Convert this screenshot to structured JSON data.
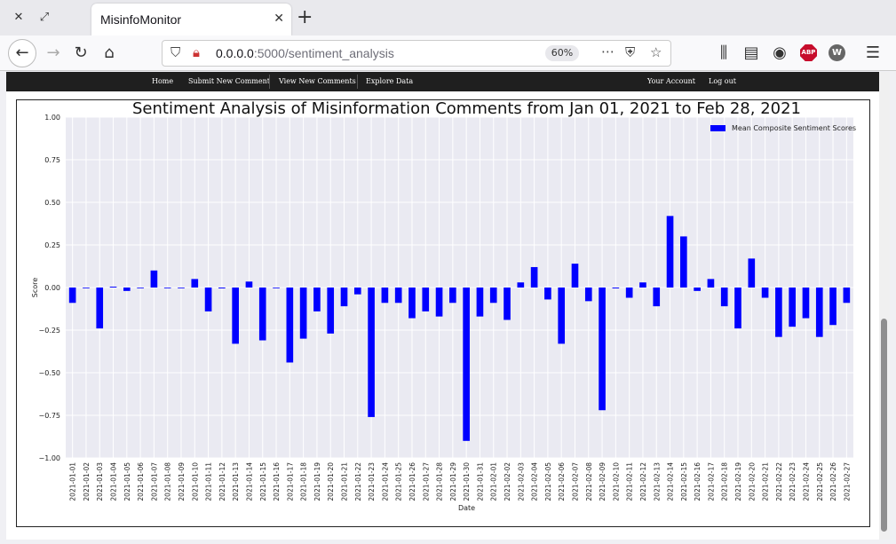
{
  "browser": {
    "tab_title": "MisinfoMonitor",
    "url_host": "0.0.0.0",
    "url_rest": ":5000/sentiment_analysis",
    "zoom": "60%",
    "abp_label": "ABP",
    "w_label": "W"
  },
  "site_nav": {
    "home": "Home",
    "submit": "Submit New Comment",
    "view": "View New Comments",
    "explore": "Explore Data",
    "account": "Your Account",
    "logout": "Log out"
  },
  "chart_data": {
    "type": "bar",
    "title": "Sentiment Analysis of Misinformation Comments from Jan 01, 2021 to Feb 28, 2021",
    "xlabel": "Date",
    "ylabel": "Score",
    "ylim": [
      -1.0,
      1.0
    ],
    "yticks": [
      "1.00",
      "0.75",
      "0.50",
      "0.25",
      "0.00",
      "−0.25",
      "−0.50",
      "−0.75",
      "−1.00"
    ],
    "ytick_values": [
      1.0,
      0.75,
      0.5,
      0.25,
      0.0,
      -0.25,
      -0.5,
      -0.75,
      -1.0
    ],
    "grid": true,
    "legend_position": "top-right",
    "bar_color": "#0000ff",
    "series": [
      {
        "name": "Mean Composite Sentiment Scores",
        "values": [
          -0.09,
          0,
          -0.24,
          0.005,
          -0.02,
          0,
          0.1,
          0,
          0,
          0.05,
          -0.14,
          -0.005,
          -0.33,
          0.035,
          -0.31,
          0,
          -0.44,
          -0.3,
          -0.14,
          -0.27,
          -0.11,
          -0.04,
          -0.76,
          -0.09,
          -0.09,
          -0.18,
          -0.14,
          -0.17,
          -0.09,
          -0.9,
          -0.17,
          -0.09,
          -0.19,
          0.03,
          0.12,
          -0.07,
          -0.33,
          0.14,
          -0.08,
          -0.72,
          -0.005,
          -0.06,
          0.03,
          -0.11,
          0.42,
          0.3,
          -0.02,
          0.05,
          -0.11,
          -0.24,
          0.17,
          -0.06,
          -0.29,
          -0.23,
          -0.18,
          -0.29,
          -0.22,
          -0.09
        ]
      }
    ],
    "categories": [
      "2021-01-01",
      "2021-01-02",
      "2021-01-03",
      "2021-01-04",
      "2021-01-05",
      "2021-01-06",
      "2021-01-07",
      "2021-01-08",
      "2021-01-09",
      "2021-01-10",
      "2021-01-11",
      "2021-01-12",
      "2021-01-13",
      "2021-01-14",
      "2021-01-15",
      "2021-01-16",
      "2021-01-17",
      "2021-01-18",
      "2021-01-19",
      "2021-01-20",
      "2021-01-21",
      "2021-01-22",
      "2021-01-23",
      "2021-01-24",
      "2021-01-25",
      "2021-01-26",
      "2021-01-27",
      "2021-01-28",
      "2021-01-29",
      "2021-01-30",
      "2021-01-31",
      "2021-02-01",
      "2021-02-02",
      "2021-02-03",
      "2021-02-04",
      "2021-02-05",
      "2021-02-06",
      "2021-02-07",
      "2021-02-08",
      "2021-02-09",
      "2021-02-10",
      "2021-02-11",
      "2021-02-12",
      "2021-02-13",
      "2021-02-14",
      "2021-02-15",
      "2021-02-16",
      "2021-02-17",
      "2021-02-18",
      "2021-02-19",
      "2021-02-20",
      "2021-02-21",
      "2021-02-22",
      "2021-02-23",
      "2021-02-24",
      "2021-02-25",
      "2021-02-26",
      "2021-02-27"
    ]
  }
}
